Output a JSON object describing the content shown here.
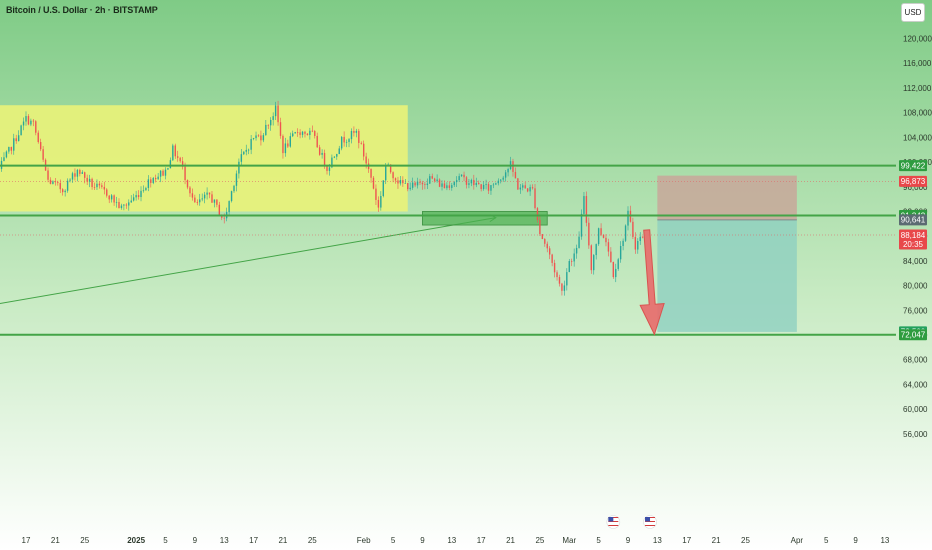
{
  "header": {
    "symbol_title": "Bitcoin / U.S. Dollar · 2h · BITSTAMP",
    "currency_button": "USD"
  },
  "colors": {
    "background_top": "#7fcb86",
    "background_bottom": "#ffffff",
    "range_box": "#e8f27a",
    "level_line": "#43a447",
    "candle_up": "#26a69a",
    "candle_down": "#ef5350",
    "stop_zone": "#c8a79a",
    "target_zone": "#8fd0c0",
    "arrow": "#e86a6a"
  },
  "chart_data": {
    "type": "candlestick",
    "title": "Bitcoin / U.S. Dollar · 2h · BITSTAMP",
    "y_axis": {
      "ticks": [
        56000,
        60000,
        64000,
        68000,
        72000,
        76000,
        80000,
        84000,
        88000,
        92000,
        96000,
        100000,
        104000,
        108000,
        112000,
        116000,
        120000
      ],
      "tick_labels": [
        "56,000",
        "60,000",
        "64,000",
        "68,000",
        "72,000",
        "76,000",
        "80,000",
        "84,000",
        "88,000",
        "92,000",
        "96,000",
        "100,000",
        "104,000",
        "108,000",
        "112,000",
        "116,000",
        "120,000"
      ],
      "range": [
        55000,
        123000
      ]
    },
    "x_axis": {
      "ticks": [
        {
          "date": "2024-12-17",
          "label": "17"
        },
        {
          "date": "2024-12-21",
          "label": "21"
        },
        {
          "date": "2024-12-25",
          "label": "25"
        },
        {
          "date": "2025-01-01",
          "label": "2025",
          "bold": true
        },
        {
          "date": "2025-01-05",
          "label": "5"
        },
        {
          "date": "2025-01-09",
          "label": "9"
        },
        {
          "date": "2025-01-13",
          "label": "13"
        },
        {
          "date": "2025-01-17",
          "label": "17"
        },
        {
          "date": "2025-01-21",
          "label": "21"
        },
        {
          "date": "2025-01-25",
          "label": "25"
        },
        {
          "date": "2025-02-01",
          "label": "Feb"
        },
        {
          "date": "2025-02-05",
          "label": "5"
        },
        {
          "date": "2025-02-09",
          "label": "9"
        },
        {
          "date": "2025-02-13",
          "label": "13"
        },
        {
          "date": "2025-02-17",
          "label": "17"
        },
        {
          "date": "2025-02-21",
          "label": "21"
        },
        {
          "date": "2025-02-25",
          "label": "25"
        },
        {
          "date": "2025-03-01",
          "label": "Mar"
        },
        {
          "date": "2025-03-05",
          "label": "5"
        },
        {
          "date": "2025-03-09",
          "label": "9"
        },
        {
          "date": "2025-03-13",
          "label": "13"
        },
        {
          "date": "2025-03-17",
          "label": "17"
        },
        {
          "date": "2025-03-21",
          "label": "21"
        },
        {
          "date": "2025-03-25",
          "label": "25"
        },
        {
          "date": "2025-04-01",
          "label": "Apr"
        },
        {
          "date": "2025-04-05",
          "label": "5"
        },
        {
          "date": "2025-04-09",
          "label": "9"
        },
        {
          "date": "2025-04-13",
          "label": "13"
        }
      ]
    },
    "price_path": [
      [
        "2024-12-13",
        98000
      ],
      [
        "2024-12-15",
        102500
      ],
      [
        "2024-12-17",
        107000
      ],
      [
        "2024-12-18",
        106200
      ],
      [
        "2024-12-20",
        97000
      ],
      [
        "2024-12-22",
        95500
      ],
      [
        "2024-12-24",
        98800
      ],
      [
        "2024-12-26",
        96300
      ],
      [
        "2024-12-28",
        95000
      ],
      [
        "2024-12-30",
        92500
      ],
      [
        "2025-01-01",
        94500
      ],
      [
        "2025-01-03",
        97300
      ],
      [
        "2025-01-05",
        98500
      ],
      [
        "2025-01-06",
        102000
      ],
      [
        "2025-01-07",
        100000
      ],
      [
        "2025-01-09",
        93000
      ],
      [
        "2025-01-11",
        94700
      ],
      [
        "2025-01-13",
        90500
      ],
      [
        "2025-01-15",
        100000
      ],
      [
        "2025-01-17",
        104000
      ],
      [
        "2025-01-18",
        104200
      ],
      [
        "2025-01-20",
        108500
      ],
      [
        "2025-01-21",
        102000
      ],
      [
        "2025-01-23",
        105000
      ],
      [
        "2025-01-25",
        104500
      ],
      [
        "2025-01-27",
        99000
      ],
      [
        "2025-01-29",
        103500
      ],
      [
        "2025-01-31",
        104800
      ],
      [
        "2025-02-02",
        97500
      ],
      [
        "2025-02-03",
        92500
      ],
      [
        "2025-02-04",
        99500
      ],
      [
        "2025-02-06",
        96500
      ],
      [
        "2025-02-08",
        96000
      ],
      [
        "2025-02-10",
        97400
      ],
      [
        "2025-02-12",
        96000
      ],
      [
        "2025-02-14",
        97500
      ],
      [
        "2025-02-16",
        96500
      ],
      [
        "2025-02-18",
        95700
      ],
      [
        "2025-02-20",
        98000
      ],
      [
        "2025-02-21",
        99500
      ],
      [
        "2025-02-22",
        96000
      ],
      [
        "2025-02-24",
        95500
      ],
      [
        "2025-02-25",
        88500
      ],
      [
        "2025-02-26",
        86000
      ],
      [
        "2025-02-28",
        79000
      ],
      [
        "2025-03-01",
        84000
      ],
      [
        "2025-03-02",
        85500
      ],
      [
        "2025-03-03",
        94000
      ],
      [
        "2025-03-04",
        83000
      ],
      [
        "2025-03-05",
        89000
      ],
      [
        "2025-03-06",
        87500
      ],
      [
        "2025-03-07",
        82000
      ],
      [
        "2025-03-08",
        86000
      ],
      [
        "2025-03-09",
        91500
      ],
      [
        "2025-03-10",
        86500
      ],
      [
        "2025-03-11",
        88184
      ]
    ],
    "candle_seed": 7,
    "horizontal_levels": [
      {
        "name": "resistance",
        "value": 99422
      },
      {
        "name": "support",
        "value": 91342
      },
      {
        "name": "target",
        "value": 72047
      }
    ],
    "dashed_levels": [
      96873,
      88184
    ],
    "range_box": {
      "start": "2024-12-13",
      "end": "2025-02-07",
      "low": 92000,
      "high": 109200
    },
    "trendline": {
      "start_date": "2024-12-13",
      "start_value": 77000,
      "end_date": "2025-02-19",
      "end_value": 91000
    },
    "retest_zone": {
      "start": "2025-02-09",
      "end": "2025-02-26",
      "low": 89800,
      "high": 92000
    },
    "short_position": {
      "start": "2025-03-13",
      "end": "2025-04-01",
      "stop": 97800,
      "entry": 90641,
      "target": 72500
    },
    "arrow": {
      "from_date": "2025-03-11",
      "from_value": 89000,
      "to_date": "2025-03-13",
      "to_value": 72100
    },
    "price_labels": [
      {
        "value": 99422,
        "text": "99,422",
        "color": "#2e9c3f"
      },
      {
        "value": 96873,
        "text": "96,873",
        "color": "#e8484a"
      },
      {
        "value": 91342,
        "text": "91,342",
        "color": "#2e9c3f"
      },
      {
        "value": 90641,
        "text": "90,641",
        "color": "#5b6b72"
      },
      {
        "value": 88184,
        "text": "88,184",
        "sub": "20:35",
        "color": "#e8484a"
      },
      {
        "value": 72500,
        "text": "72,500",
        "color": "#23a15e"
      },
      {
        "value": 72047,
        "text": "72,047",
        "color": "#2e9c3f"
      }
    ],
    "event_markers": [
      {
        "date": "2025-03-07",
        "icon": "us-flag-icon"
      },
      {
        "date": "2025-03-12",
        "icon": "us-flag-icon"
      }
    ]
  }
}
